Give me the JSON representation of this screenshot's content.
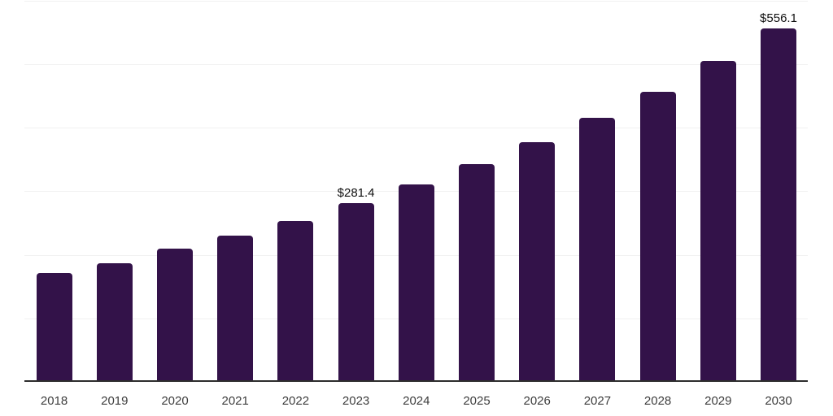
{
  "chart_data": {
    "type": "bar",
    "title": "",
    "xlabel": "",
    "ylabel": "",
    "categories": [
      "2018",
      "2019",
      "2020",
      "2021",
      "2022",
      "2023",
      "2024",
      "2025",
      "2026",
      "2027",
      "2028",
      "2029",
      "2030"
    ],
    "values": [
      171.4,
      187.0,
      209.5,
      230.0,
      253.0,
      281.4,
      310.4,
      342.6,
      377.2,
      415.6,
      457.0,
      505.6,
      556.1
    ],
    "value_labels": [
      "",
      "",
      "",
      "",
      "",
      "$281.4",
      "",
      "",
      "",
      "",
      "",
      "",
      "$556.1"
    ],
    "ylim": [
      0,
      600
    ],
    "grid_step": 100,
    "grid": true,
    "legend": false,
    "y_axis_tick_labels_visible": false,
    "colors": {
      "bar": "#331249",
      "axis_line": "#2d2d2d",
      "gridline": "#f1f1f1",
      "tick_label": "#3d3d3d",
      "value_label": "#111111",
      "background": "#ffffff"
    }
  }
}
